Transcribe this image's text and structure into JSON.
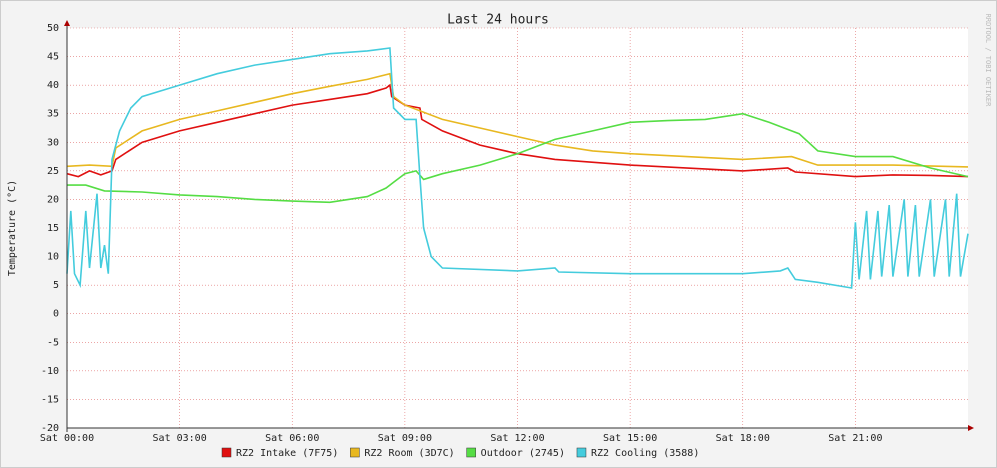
{
  "chart_data": {
    "type": "line",
    "title": "Last 24 hours",
    "y_label": "Temperature (°C)",
    "watermark": "RRDTOOL / TOBI OETIKER",
    "xlim": [
      0,
      24
    ],
    "ylim": [
      -20,
      50
    ],
    "xticks": [
      {
        "value": 0,
        "label": "Sat 00:00"
      },
      {
        "value": 3,
        "label": "Sat 03:00"
      },
      {
        "value": 6,
        "label": "Sat 06:00"
      },
      {
        "value": 9,
        "label": "Sat 09:00"
      },
      {
        "value": 12,
        "label": "Sat 12:00"
      },
      {
        "value": 15,
        "label": "Sat 15:00"
      },
      {
        "value": 18,
        "label": "Sat 18:00"
      },
      {
        "value": 21,
        "label": "Sat 21:00"
      }
    ],
    "yticks": [
      -20,
      -15,
      -10,
      -5,
      0,
      5,
      10,
      15,
      20,
      25,
      30,
      35,
      40,
      45,
      50
    ],
    "grid": true,
    "series": [
      {
        "name": "RZ2 Intake (7F75)",
        "color": "#e01010",
        "x": [
          0,
          0.3,
          0.6,
          0.9,
          1.2,
          1.3,
          2,
          3,
          4,
          5,
          6,
          7,
          8,
          8.5,
          8.6,
          8.65,
          9,
          9.4,
          9.45,
          10,
          11,
          12,
          13,
          15,
          18,
          19.2,
          19.4,
          21,
          22,
          23,
          24
        ],
        "values": [
          24.5,
          24,
          25,
          24.3,
          25,
          27,
          30,
          32,
          33.5,
          35,
          36.5,
          37.5,
          38.5,
          39.5,
          40,
          38,
          36.5,
          36,
          34,
          32,
          29.5,
          28,
          27,
          26,
          25,
          25.5,
          24.8,
          24,
          24.3,
          24.2,
          24
        ]
      },
      {
        "name": "RZ2 Room (3D7C)",
        "color": "#e8b820",
        "x": [
          0,
          0.6,
          1.2,
          1.3,
          2,
          3,
          4,
          5,
          6,
          7,
          8,
          8.6,
          8.7,
          9,
          10,
          11,
          12,
          13,
          14,
          15,
          18,
          19.3,
          20,
          22,
          24
        ],
        "values": [
          25.8,
          26,
          25.8,
          29,
          32,
          34,
          35.5,
          37,
          38.5,
          39.8,
          41,
          42,
          38,
          36.5,
          34,
          32.5,
          31,
          29.5,
          28.5,
          28,
          27,
          27.5,
          26,
          26,
          25.7
        ]
      },
      {
        "name": "Outdoor (2745)",
        "color": "#55dd44",
        "x": [
          0,
          0.5,
          1,
          2,
          3,
          4,
          5,
          6,
          7,
          8,
          8.5,
          8.7,
          9,
          9.3,
          9.5,
          10,
          11,
          12,
          13,
          14,
          15,
          16,
          17,
          18,
          18.7,
          19.5,
          20,
          21,
          22,
          23,
          24
        ],
        "values": [
          22.5,
          22.5,
          21.5,
          21.3,
          20.8,
          20.5,
          20,
          19.7,
          19.5,
          20.5,
          22,
          23,
          24.5,
          25,
          23.5,
          24.5,
          26,
          28,
          30.5,
          32,
          33.5,
          33.8,
          34,
          35,
          33.5,
          31.5,
          28.5,
          27.5,
          27.5,
          25.5,
          24
        ]
      },
      {
        "name": "RZ2 Cooling (3588)",
        "color": "#44ccdd",
        "x": [
          0,
          0.1,
          0.2,
          0.35,
          0.5,
          0.6,
          0.8,
          0.9,
          1,
          1.1,
          1.2,
          1.4,
          1.7,
          2,
          3,
          4,
          5,
          6,
          7,
          8,
          8.6,
          8.7,
          9,
          9.3,
          9.4,
          9.5,
          9.7,
          10,
          12,
          13,
          13.1,
          15,
          18,
          19,
          19.2,
          19.4,
          20,
          20.9,
          21,
          21.1,
          21.3,
          21.4,
          21.6,
          21.7,
          21.9,
          22,
          22.3,
          22.4,
          22.6,
          22.7,
          23,
          23.1,
          23.4,
          23.5,
          23.7,
          23.8,
          24
        ],
        "values": [
          7,
          18,
          7,
          5,
          18,
          8,
          21,
          8,
          12,
          7,
          27,
          32,
          36,
          38,
          40,
          42,
          43.5,
          44.5,
          45.5,
          46,
          46.5,
          36,
          34,
          34,
          24,
          15,
          10,
          8,
          7.5,
          8,
          7.3,
          7,
          7,
          7.5,
          8,
          6,
          5.5,
          4.5,
          16,
          6,
          18,
          6,
          18,
          6.5,
          19,
          6.5,
          20,
          6.5,
          19,
          6.5,
          20,
          6.5,
          20,
          6.5,
          21,
          6.5,
          14
        ]
      }
    ]
  }
}
